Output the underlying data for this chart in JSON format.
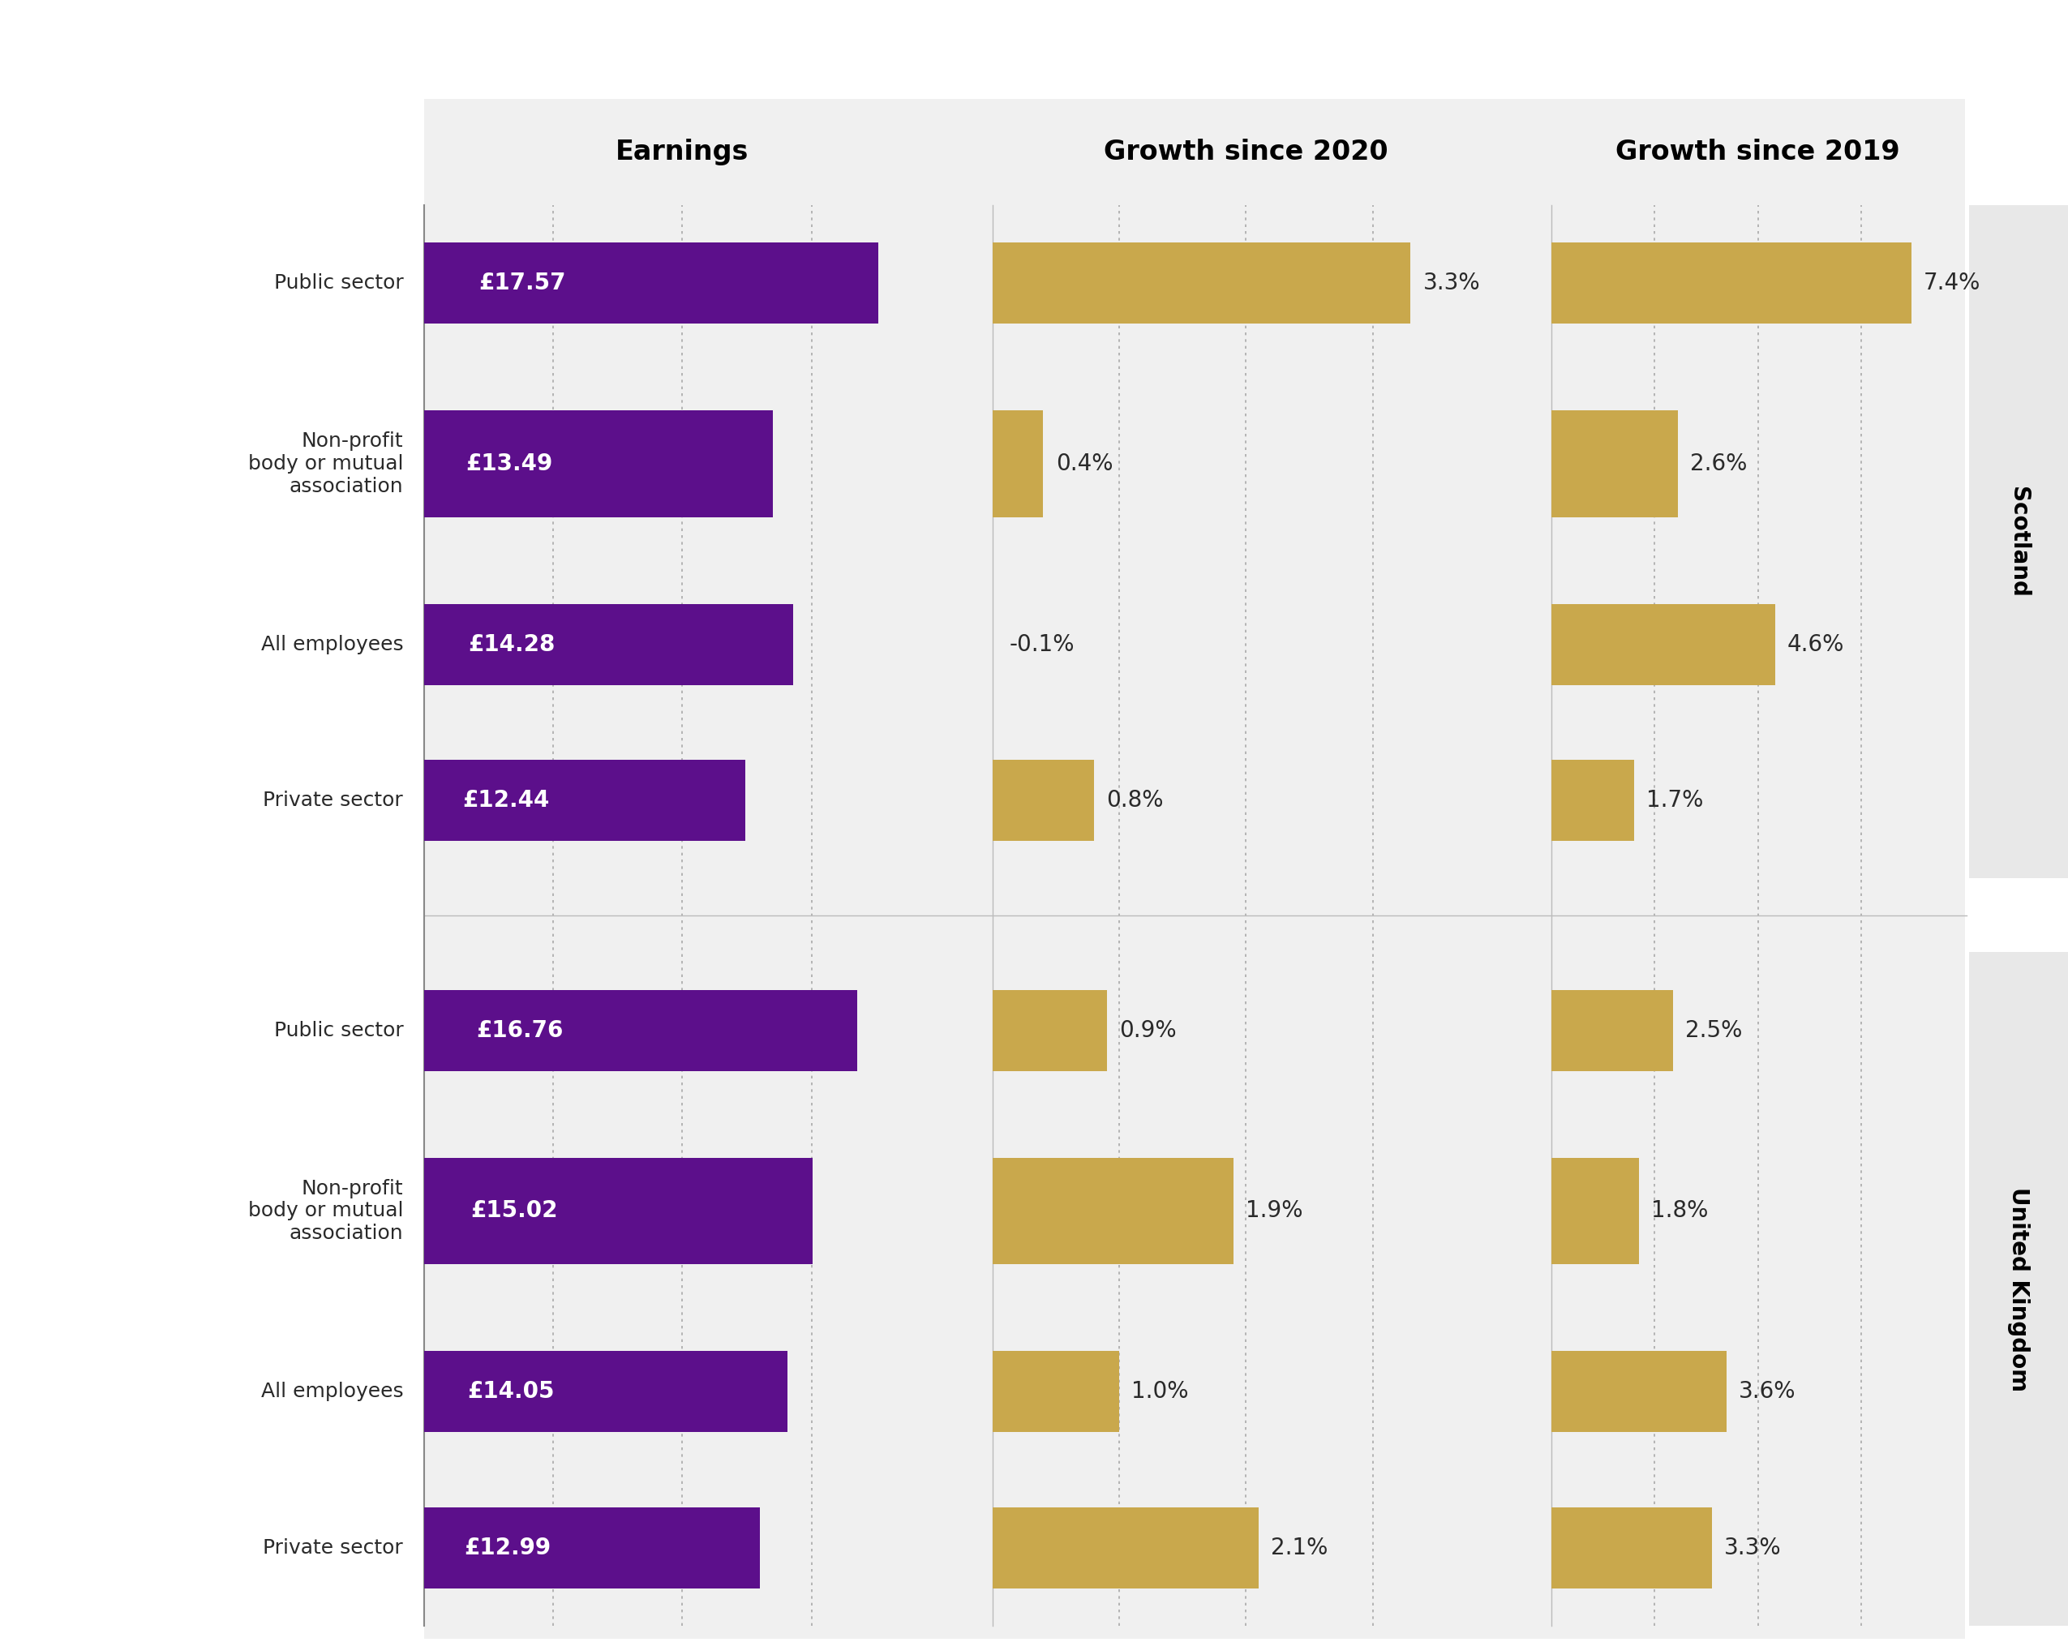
{
  "scotland": {
    "labels": [
      "Public sector",
      "Non-profit\nbody or mutual\nassociation",
      "All employees",
      "Private sector"
    ],
    "earnings": [
      17.57,
      13.49,
      14.28,
      12.44
    ],
    "growth_2020": [
      3.3,
      0.4,
      -0.1,
      0.8
    ],
    "growth_2019": [
      7.4,
      2.6,
      4.6,
      1.7
    ],
    "earnings_labels": [
      "£17.57",
      "£13.49",
      "£14.28",
      "£12.44"
    ],
    "growth_2020_labels": [
      "3.3%",
      "0.4%",
      "-0.1%",
      "0.8%"
    ],
    "growth_2019_labels": [
      "7.4%",
      "2.6%",
      "4.6%",
      "1.7%"
    ]
  },
  "uk": {
    "labels": [
      "Public sector",
      "Non-profit\nbody or mutual\nassociation",
      "All employees",
      "Private sector"
    ],
    "earnings": [
      16.76,
      15.02,
      14.05,
      12.99
    ],
    "growth_2020": [
      0.9,
      1.9,
      1.0,
      2.1
    ],
    "growth_2019": [
      2.5,
      1.8,
      3.6,
      3.3
    ],
    "earnings_labels": [
      "£16.76",
      "£15.02",
      "£14.05",
      "£12.99"
    ],
    "growth_2020_labels": [
      "0.9%",
      "1.9%",
      "1.0%",
      "2.1%"
    ],
    "growth_2019_labels": [
      "2.5%",
      "1.8%",
      "3.6%",
      "3.3%"
    ]
  },
  "purple": "#5c0f8b",
  "gold": "#c9a84c",
  "background": "#f0f0f0",
  "white_bg": "#ffffff",
  "sect_bg": "#e8e8e8",
  "text_dark": "#2a2a2a",
  "col1_header": "Earnings",
  "col2_header": "Growth since 2020",
  "col3_header": "Growth since 2019",
  "scotland_label": "Scotland",
  "uk_label": "United Kingdom",
  "earnings_max": 20.0,
  "growth2020_max": 4.0,
  "growth2019_max": 8.5
}
